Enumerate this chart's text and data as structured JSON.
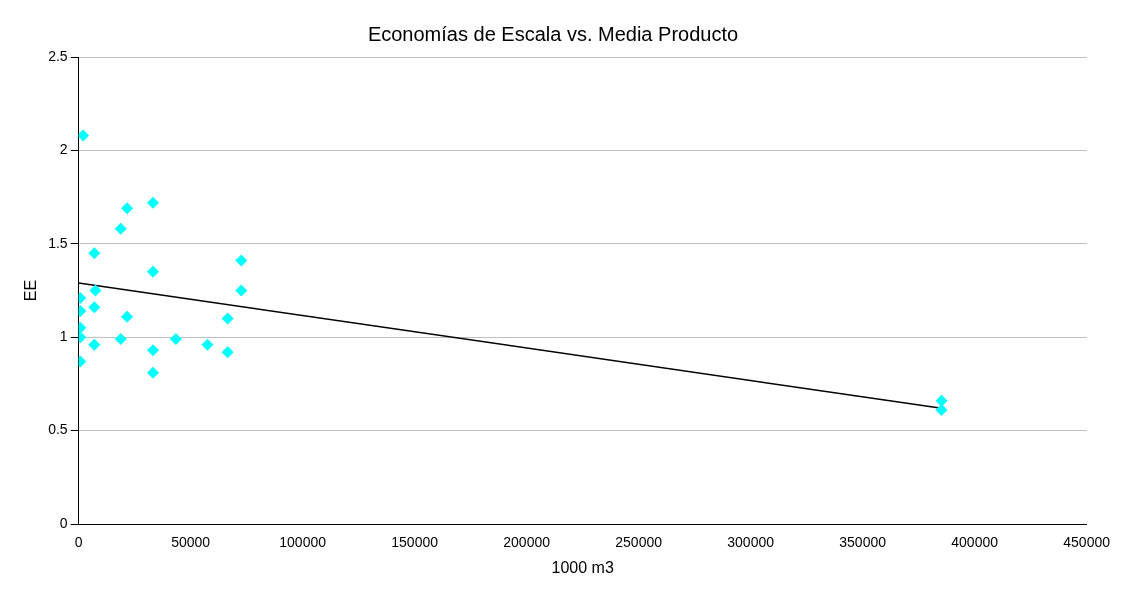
{
  "chart_data": {
    "type": "scatter",
    "title": "Economías de Escala vs. Media Producto",
    "xlabel": "1000 m3",
    "ylabel": "EE",
    "xlim": [
      0,
      450000
    ],
    "xticks": [
      0,
      50000,
      100000,
      150000,
      200000,
      250000,
      300000,
      350000,
      400000,
      450000
    ],
    "ylim": [
      0,
      2.5
    ],
    "yticks": [
      0,
      0.5,
      1,
      1.5,
      2,
      2.5
    ],
    "grid": "y",
    "legend": false,
    "marker": "diamond",
    "series": [
      {
        "type": "scatter",
        "color": "#00ffff",
        "x": [
          2000,
          21600,
          33200,
          18800,
          7000,
          33200,
          72600,
          72600,
          7500,
          700,
          700,
          7000,
          21600,
          66500,
          700,
          700,
          18800,
          43400,
          7000,
          57500,
          33200,
          66500,
          700,
          33200,
          385200,
          385200
        ],
        "values": [
          2.08,
          1.69,
          1.72,
          1.58,
          1.45,
          1.35,
          1.41,
          1.25,
          1.25,
          1.21,
          1.14,
          1.16,
          1.11,
          1.1,
          1.05,
          1.0,
          0.99,
          0.99,
          0.96,
          0.96,
          0.93,
          0.92,
          0.87,
          0.81,
          0.66,
          0.61
        ]
      },
      {
        "type": "line",
        "color": "#000000",
        "marker": "none",
        "x": [
          0,
          385200
        ],
        "values": [
          1.29,
          0.62
        ]
      }
    ]
  }
}
